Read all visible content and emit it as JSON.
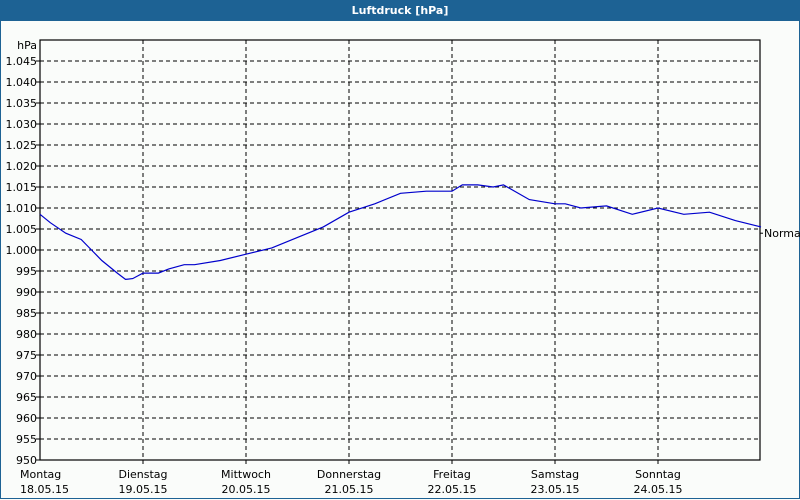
{
  "window": {
    "title": "Luftdruck [hPa]"
  },
  "chart_data": {
    "type": "line",
    "title": "Luftdruck [hPa]",
    "ylabel": "hPa",
    "xlabel": "",
    "ylim": [
      950,
      1050
    ],
    "yticks": [
      "950",
      "955",
      "960",
      "965",
      "970",
      "975",
      "980",
      "985",
      "990",
      "995",
      "1.000",
      "1.005",
      "1.010",
      "1.015",
      "1.020",
      "1.025",
      "1.030",
      "1.035",
      "1.040",
      "1.045"
    ],
    "xticks": [
      {
        "day": "Montag",
        "date": "18.05.15"
      },
      {
        "day": "Dienstag",
        "date": "19.05.15"
      },
      {
        "day": "Mittwoch",
        "date": "20.05.15"
      },
      {
        "day": "Donnerstag",
        "date": "21.05.15"
      },
      {
        "day": "Freitag",
        "date": "22.05.15"
      },
      {
        "day": "Samstag",
        "date": "23.05.15"
      },
      {
        "day": "Sonntag",
        "date": "24.05.15"
      }
    ],
    "grid": true,
    "annotation": {
      "label": "Normal",
      "value": 1004
    },
    "series": [
      {
        "name": "Luftdruck",
        "color": "#0000cc",
        "x_days": [
          0,
          0.1,
          0.25,
          0.4,
          0.5,
          0.6,
          0.75,
          0.83,
          0.9,
          1.0,
          1.15,
          1.25,
          1.4,
          1.5,
          1.75,
          2.0,
          2.25,
          2.5,
          2.75,
          3.0,
          3.25,
          3.5,
          3.75,
          4.0,
          4.1,
          4.25,
          4.4,
          4.5,
          4.75,
          5.0,
          5.1,
          5.25,
          5.5,
          5.75,
          6.0,
          6.25,
          6.5,
          6.75,
          7.0
        ],
        "values": [
          1008.5,
          1006.5,
          1004,
          1002.5,
          1000,
          997.5,
          994.5,
          993,
          993.2,
          994.5,
          994.5,
          995.5,
          996.5,
          996.5,
          997.5,
          999,
          1000.5,
          1003,
          1005.5,
          1009,
          1011,
          1013.5,
          1014,
          1014,
          1015.5,
          1015.5,
          1015,
          1015.5,
          1012,
          1011,
          1011,
          1010,
          1010.5,
          1008.5,
          1010,
          1008.5,
          1009,
          1007,
          1005.5
        ]
      }
    ]
  }
}
